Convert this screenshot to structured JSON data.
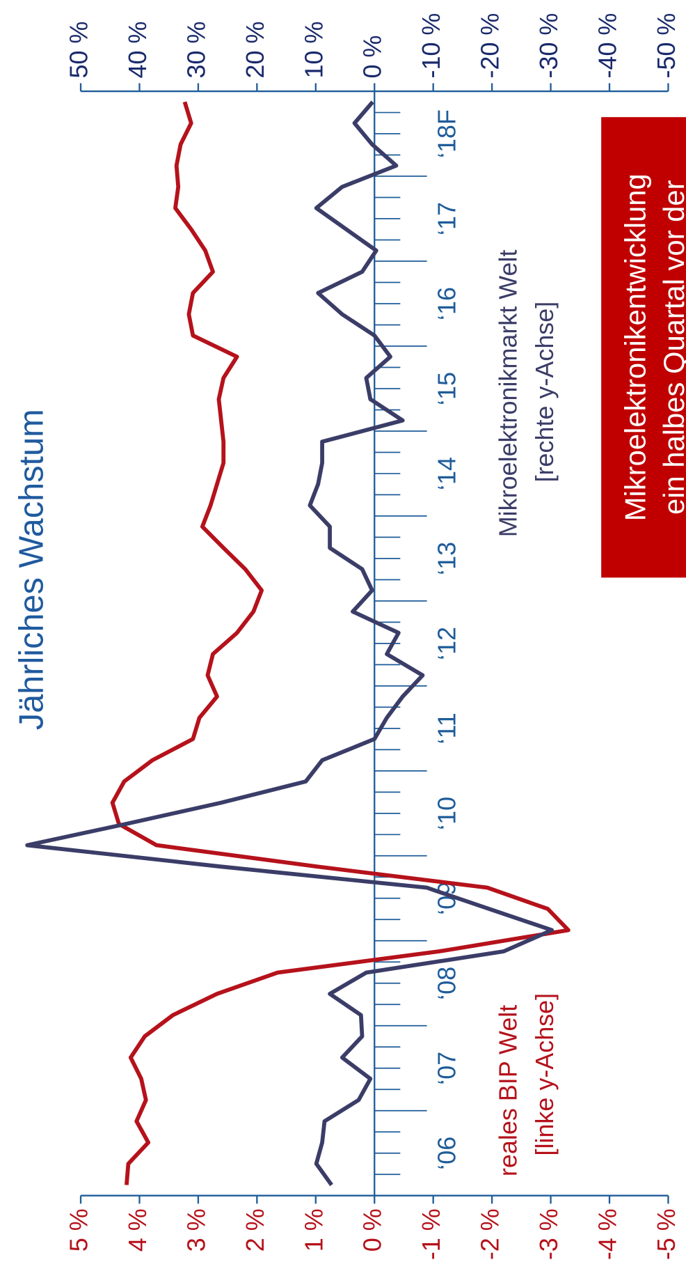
{
  "chart_data": {
    "type": "line",
    "title": "Jährliches Wachstum",
    "x": [
      2006.125,
      2006.375,
      2006.625,
      2006.875,
      2007.125,
      2007.375,
      2007.625,
      2007.875,
      2008.125,
      2008.375,
      2008.625,
      2008.875,
      2009.125,
      2009.375,
      2009.625,
      2009.875,
      2010.125,
      2010.375,
      2010.625,
      2010.875,
      2011.125,
      2011.375,
      2011.625,
      2011.875,
      2012.125,
      2012.375,
      2012.625,
      2012.875,
      2013.125,
      2013.375,
      2013.625,
      2013.875,
      2014.125,
      2014.375,
      2014.625,
      2014.875,
      2015.125,
      2015.375,
      2015.625,
      2015.875,
      2016.125,
      2016.375,
      2016.625,
      2016.875,
      2017.125,
      2017.375,
      2017.625,
      2017.875,
      2018.125,
      2018.375,
      2018.625,
      2018.875
    ],
    "xlim": [
      2006,
      2019
    ],
    "xticks": [
      2006.25,
      2006.5,
      2006.75,
      2007,
      2007.25,
      2007.5,
      2007.75,
      2008,
      2008.25,
      2008.5,
      2008.75,
      2009,
      2009.25,
      2009.5,
      2009.75,
      2010,
      2010.25,
      2010.5,
      2010.75,
      2011,
      2011.25,
      2011.5,
      2011.75,
      2012,
      2012.25,
      2012.5,
      2012.75,
      2013,
      2013.25,
      2013.5,
      2013.75,
      2014,
      2014.25,
      2014.5,
      2014.75,
      2015,
      2015.25,
      2015.5,
      2015.75,
      2016,
      2016.25,
      2016.5,
      2016.75,
      2017,
      2017.25,
      2017.5,
      2017.75,
      2018,
      2018.25,
      2018.5,
      2018.75
    ],
    "x_labels": [
      {
        "value": 2006.5,
        "label": "‘06"
      },
      {
        "value": 2007.5,
        "label": "‘07"
      },
      {
        "value": 2008.5,
        "label": "‘08"
      },
      {
        "value": 2009.5,
        "label": "‘09"
      },
      {
        "value": 2010.5,
        "label": "‘10"
      },
      {
        "value": 2011.5,
        "label": "‘11"
      },
      {
        "value": 2012.5,
        "label": "‘12"
      },
      {
        "value": 2013.5,
        "label": "‘13"
      },
      {
        "value": 2014.5,
        "label": "‘14"
      },
      {
        "value": 2015.5,
        "label": "‘15"
      },
      {
        "value": 2016.5,
        "label": "‘16"
      },
      {
        "value": 2017.5,
        "label": "‘17"
      },
      {
        "value": 2018.5,
        "label": "‘18F"
      }
    ],
    "ylim": [
      -5,
      5
    ],
    "yticks": [
      {
        "value": 5,
        "label": "5 %"
      },
      {
        "value": 4,
        "label": "4 %"
      },
      {
        "value": 3,
        "label": "3 %"
      },
      {
        "value": 2,
        "label": "2 %"
      },
      {
        "value": 1,
        "label": "1 %"
      },
      {
        "value": 0,
        "label": "0 %"
      },
      {
        "value": -1,
        "label": "-1 %"
      },
      {
        "value": -2,
        "label": "-2 %"
      },
      {
        "value": -3,
        "label": "-3 %"
      },
      {
        "value": -4,
        "label": "-4 %"
      },
      {
        "value": -5,
        "label": "-5 %"
      }
    ],
    "y2lim": [
      -50,
      50
    ],
    "y2ticks": [
      {
        "value": 50,
        "label": "50 %"
      },
      {
        "value": 40,
        "label": "40 %"
      },
      {
        "value": 30,
        "label": "30 %"
      },
      {
        "value": 20,
        "label": "20 %"
      },
      {
        "value": 10,
        "label": "10 %"
      },
      {
        "value": 0,
        "label": "0 %"
      },
      {
        "value": -10,
        "label": "-10 %"
      },
      {
        "value": -20,
        "label": "-20 %"
      },
      {
        "value": -30,
        "label": "-30 %"
      },
      {
        "value": -40,
        "label": "-40 %"
      },
      {
        "value": -50,
        "label": "-50 %"
      }
    ],
    "series": [
      {
        "name": "reales BIP Welt",
        "note": "[linke y-Achse]",
        "color": "#b5121b",
        "values": [
          4.22,
          4.19,
          3.85,
          4.05,
          3.89,
          3.97,
          4.15,
          3.91,
          3.43,
          2.68,
          1.65,
          -1.1,
          -3.3,
          -2.95,
          -1.92,
          1.0,
          3.71,
          4.35,
          4.46,
          4.26,
          3.78,
          3.09,
          2.98,
          2.68,
          2.84,
          2.75,
          2.34,
          2.06,
          1.92,
          2.2,
          2.57,
          2.93,
          2.79,
          2.68,
          2.57,
          2.57,
          2.61,
          2.65,
          2.57,
          2.34,
          3.09,
          3.16,
          3.09,
          2.75,
          2.88,
          3.12,
          3.39,
          3.34,
          3.37,
          3.3,
          3.12,
          3.23
        ]
      },
      {
        "name": "Mikroelektronikmarkt Welt",
        "note": "[rechte y-Achse]",
        "color": "#3b3d68",
        "axis": "y2",
        "values": [
          7.3,
          9.9,
          8.9,
          8.5,
          2.7,
          0.7,
          5.5,
          2.1,
          2.3,
          7.6,
          1.4,
          -22.0,
          -30.2,
          -19.5,
          -8.9,
          26.4,
          59.1,
          42.3,
          26.1,
          11.7,
          8.9,
          0,
          -2.1,
          -4.8,
          -8.2,
          -2.1,
          -4.1,
          3.7,
          0.4,
          2.1,
          7.6,
          7.6,
          11.0,
          9.6,
          8.9,
          8.9,
          -4.8,
          0.7,
          1.4,
          -2.7,
          0,
          5.5,
          9.6,
          2.1,
          -0.3,
          4.8,
          9.9,
          5.5,
          -3.7,
          0.4,
          3.4,
          0.3
        ]
      }
    ],
    "box_text": [
      "Mikroelektronikentwicklung",
      "ein halbes Quartal vor der"
    ],
    "box_color": "#c00000",
    "axis_color": "#1f5c99"
  }
}
